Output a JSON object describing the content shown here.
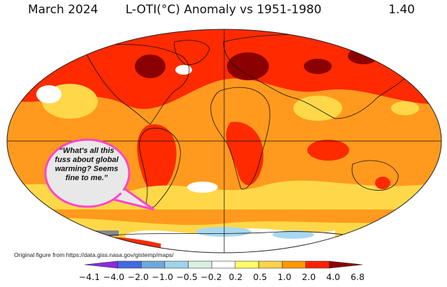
{
  "header": {
    "date": "March 2024",
    "title": "L-OTI(°C) Anomaly vs 1951-1980",
    "global_mean": "1.40"
  },
  "speech_bubble": {
    "text": "“What's all this fuss about global warming? Seems fine to me.”"
  },
  "credit": "Original figure from https://data.giss.nasa.gov/gistemp/maps/",
  "colorbar": {
    "ticks": [
      "−4.1",
      "−4.0",
      "−2.0",
      "−1.0",
      "−0.5",
      "−0.2",
      "0.2",
      "0.5",
      "1.0",
      "2.0",
      "4.0",
      "6.8"
    ],
    "colors": [
      "#8a2be2",
      "#4169e1",
      "#6fa8dc",
      "#9fd4ea",
      "#d8f0e0",
      "#ffffff",
      "#ffff66",
      "#ffd24d",
      "#ff9900",
      "#ff2200",
      "#8b0000"
    ]
  },
  "legend_colors": {
    "ocean_base": "#ff9a1e",
    "warm": "#ff2a00",
    "hot": "#8b0000",
    "mild": "#ffd84a",
    "cool": "#ffffff",
    "cold": "#a8d8f0",
    "bubble_border": "#ff44cc"
  }
}
